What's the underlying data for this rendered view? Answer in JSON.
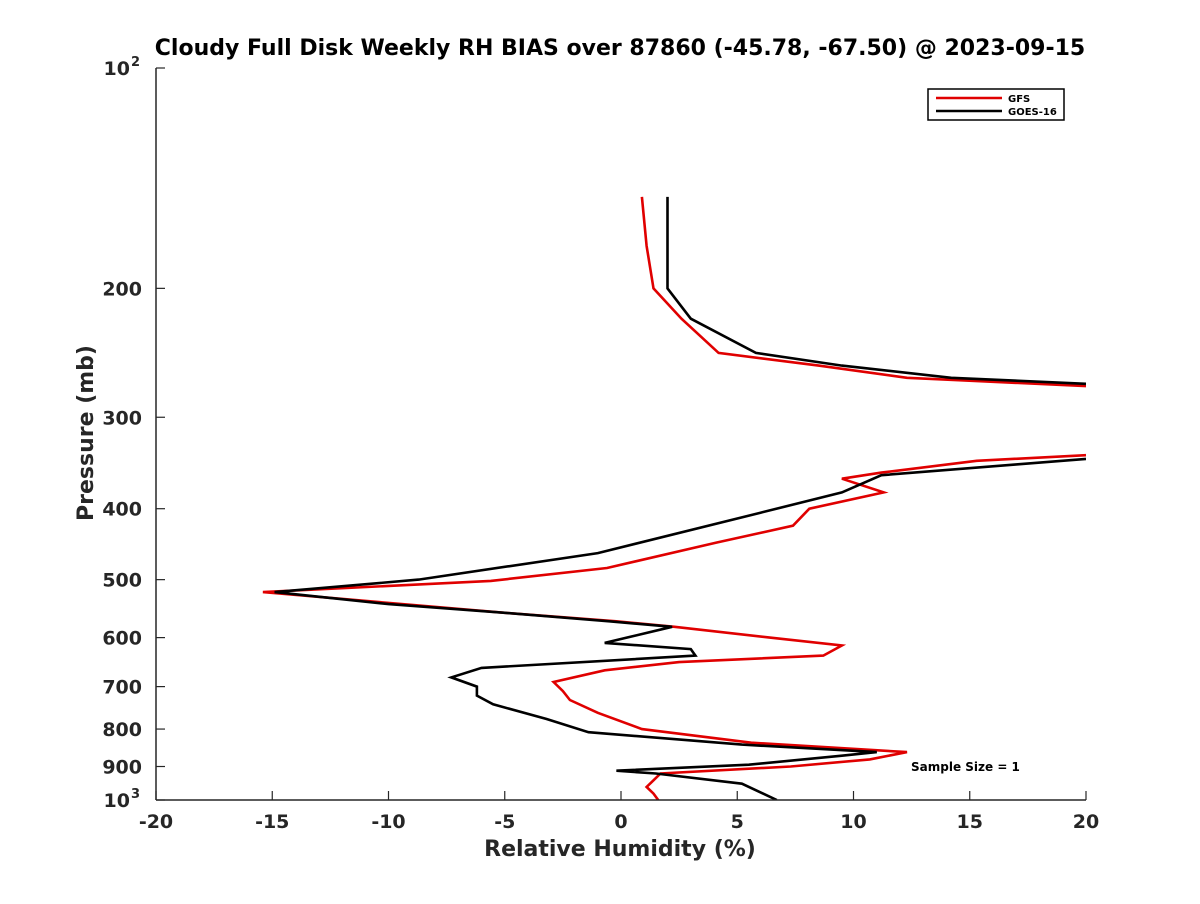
{
  "chart_data": {
    "type": "line",
    "title": "Cloudy Full Disk Weekly RH BIAS over 87860 (-45.78, -67.50) @ 2023-09-15",
    "xlabel": "Relative Humidity (%)",
    "ylabel": "Pressure (mb)",
    "xlim": [
      -20,
      20
    ],
    "ylim": [
      100,
      1000
    ],
    "y_scale": "log",
    "y_reversed": true,
    "grid": false,
    "legend_placement": "top-right",
    "annotation": "Sample Size = 1",
    "x_ticks": [
      "-20",
      "-15",
      "-10",
      "-5",
      "0",
      "5",
      "10",
      "15",
      "20"
    ],
    "y_ticks": [
      {
        "value": 100,
        "label": "10",
        "sup": "2"
      },
      {
        "value": 200,
        "label": "200",
        "sup": ""
      },
      {
        "value": 300,
        "label": "300",
        "sup": ""
      },
      {
        "value": 400,
        "label": "400",
        "sup": ""
      },
      {
        "value": 500,
        "label": "500",
        "sup": ""
      },
      {
        "value": 600,
        "label": "600",
        "sup": ""
      },
      {
        "value": 700,
        "label": "700",
        "sup": ""
      },
      {
        "value": 800,
        "label": "800",
        "sup": ""
      },
      {
        "value": 900,
        "label": "900",
        "sup": ""
      },
      {
        "value": 1000,
        "label": "10",
        "sup": "3"
      }
    ],
    "series": [
      {
        "name": "GFS",
        "color": "#e00000",
        "segments": [
          [
            [
              0.9,
              150
            ],
            [
              1.1,
              175
            ],
            [
              1.4,
              200
            ],
            [
              2.6,
              220
            ],
            [
              4.2,
              245
            ],
            [
              8.5,
              255
            ],
            [
              12.3,
              265
            ],
            [
              20.0,
              272
            ]
          ],
          [
            [
              20.0,
              338
            ],
            [
              15.3,
              344
            ],
            [
              11.2,
              357
            ],
            [
              9.5,
              364
            ],
            [
              11.3,
              380
            ],
            [
              8.1,
              400
            ],
            [
              7.4,
              422
            ],
            [
              4.1,
              445
            ],
            [
              -0.6,
              482
            ],
            [
              -5.6,
              502
            ],
            [
              -15.4,
              520
            ],
            [
              -10.0,
              538
            ],
            [
              -5.0,
              555
            ],
            [
              -0.2,
              570
            ],
            [
              2.3,
              580
            ],
            [
              6.4,
              600
            ],
            [
              9.5,
              615
            ],
            [
              8.7,
              635
            ],
            [
              2.5,
              648
            ],
            [
              -0.7,
              665
            ],
            [
              -2.9,
              690
            ],
            [
              -2.5,
              710
            ],
            [
              -2.2,
              730
            ],
            [
              -1.0,
              760
            ],
            [
              0.9,
              800
            ],
            [
              5.6,
              835
            ],
            [
              12.3,
              860
            ],
            [
              10.7,
              880
            ],
            [
              7.3,
              900
            ],
            [
              1.7,
              920
            ],
            [
              1.4,
              940
            ],
            [
              1.1,
              960
            ],
            [
              1.4,
              980
            ],
            [
              1.6,
              1000
            ]
          ]
        ]
      },
      {
        "name": "GOES-16",
        "color": "#000000",
        "segments": [
          [
            [
              2.0,
              150
            ],
            [
              2.0,
              175
            ],
            [
              2.0,
              200
            ],
            [
              3.0,
              220
            ],
            [
              5.8,
              245
            ],
            [
              9.5,
              255
            ],
            [
              14.2,
              265
            ],
            [
              20.0,
              270
            ]
          ],
          [
            [
              20.0,
              342
            ],
            [
              17.0,
              348
            ],
            [
              11.2,
              360
            ],
            [
              9.5,
              380
            ],
            [
              6.0,
              405
            ],
            [
              -1.0,
              460
            ],
            [
              -8.7,
              500
            ],
            [
              -14.9,
              520
            ],
            [
              -10.0,
              540
            ],
            [
              -5.0,
              555
            ],
            [
              -0.5,
              570
            ],
            [
              2.2,
              580
            ],
            [
              -0.7,
              610
            ],
            [
              3.0,
              622
            ],
            [
              3.2,
              635
            ],
            [
              -6.0,
              660
            ],
            [
              -7.3,
              680
            ],
            [
              -6.2,
              700
            ],
            [
              -6.2,
              720
            ],
            [
              -5.5,
              740
            ],
            [
              -3.2,
              775
            ],
            [
              -1.4,
              808
            ],
            [
              5.2,
              840
            ],
            [
              11.0,
              860
            ],
            [
              9.5,
              870
            ],
            [
              5.5,
              895
            ],
            [
              -0.2,
              912
            ],
            [
              1.5,
              920
            ],
            [
              5.2,
              950
            ],
            [
              6.7,
              1000
            ]
          ]
        ]
      }
    ]
  }
}
